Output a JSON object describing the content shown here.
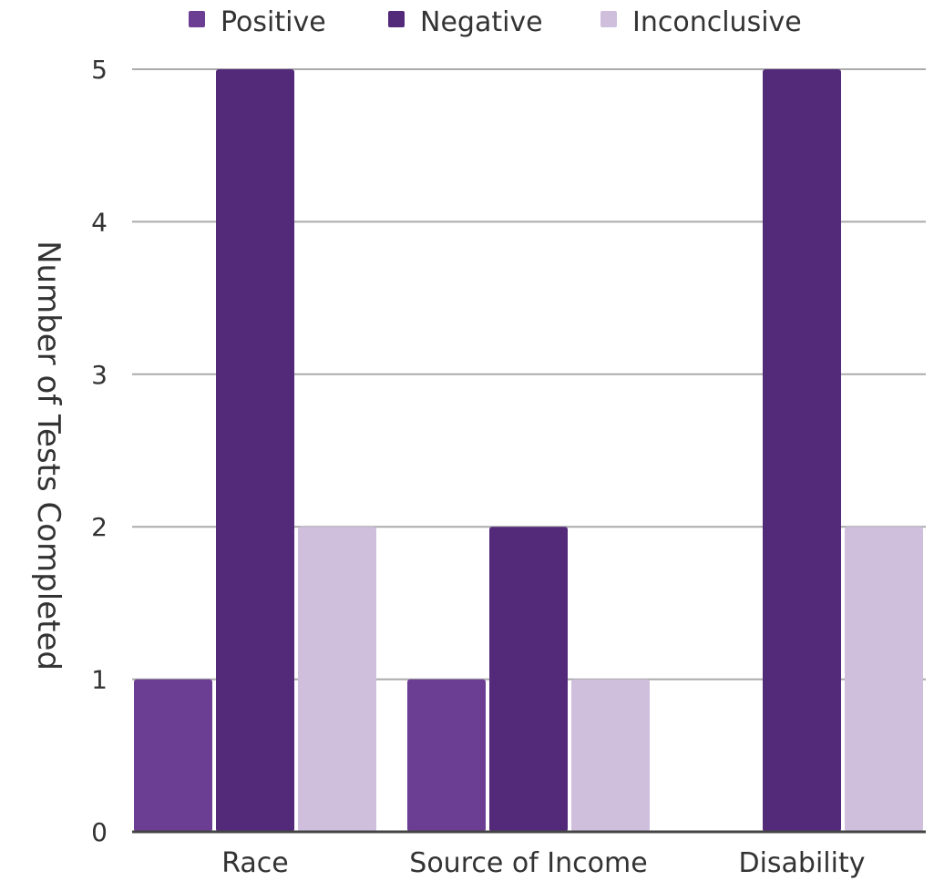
{
  "chart_data": {
    "type": "bar",
    "categories": [
      "Race",
      "Source of Income",
      "Disability"
    ],
    "series": [
      {
        "name": "Positive",
        "values": [
          1,
          1,
          0
        ],
        "color": "#6b3d93"
      },
      {
        "name": "Negative",
        "values": [
          5,
          2,
          5
        ],
        "color": "#532a7a"
      },
      {
        "name": "Inconclusive",
        "values": [
          2,
          1,
          2
        ],
        "color": "#cfbfdd"
      }
    ],
    "title": "",
    "xlabel": "",
    "ylabel": "Number of Tests Completed",
    "ylim": [
      0,
      5
    ],
    "yticks": [
      "0",
      "1",
      "2",
      "3",
      "4",
      "5"
    ],
    "grid": true,
    "legend_position": "top",
    "gridline_color": "#aaaaaa",
    "axis_color": "#444444"
  }
}
